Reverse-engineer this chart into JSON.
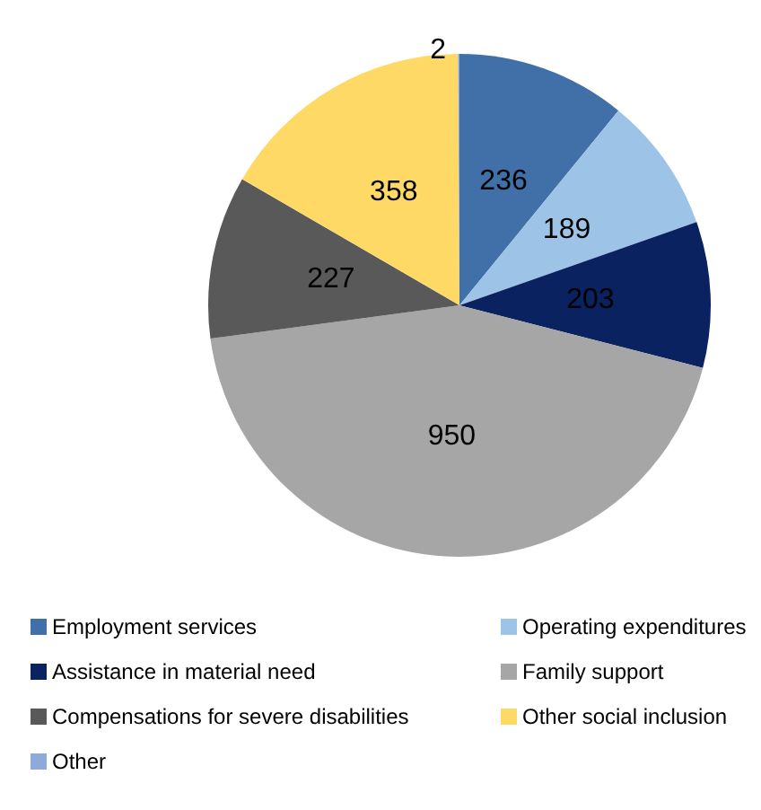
{
  "chart_data": {
    "type": "pie",
    "categories": [
      "Employment services",
      "Operating expenditures",
      "Assistance in material need",
      "Family support",
      "Compensations for severe disabilities",
      "Other social inclusion",
      "Other"
    ],
    "values": [
      236,
      189,
      203,
      950,
      227,
      358,
      2
    ],
    "colors": [
      "#4170a8",
      "#9dc3e6",
      "#0b2260",
      "#a6a6a6",
      "#595959",
      "#ffd966",
      "#8eaadb"
    ],
    "data_labels": true,
    "legend": "bottom"
  }
}
